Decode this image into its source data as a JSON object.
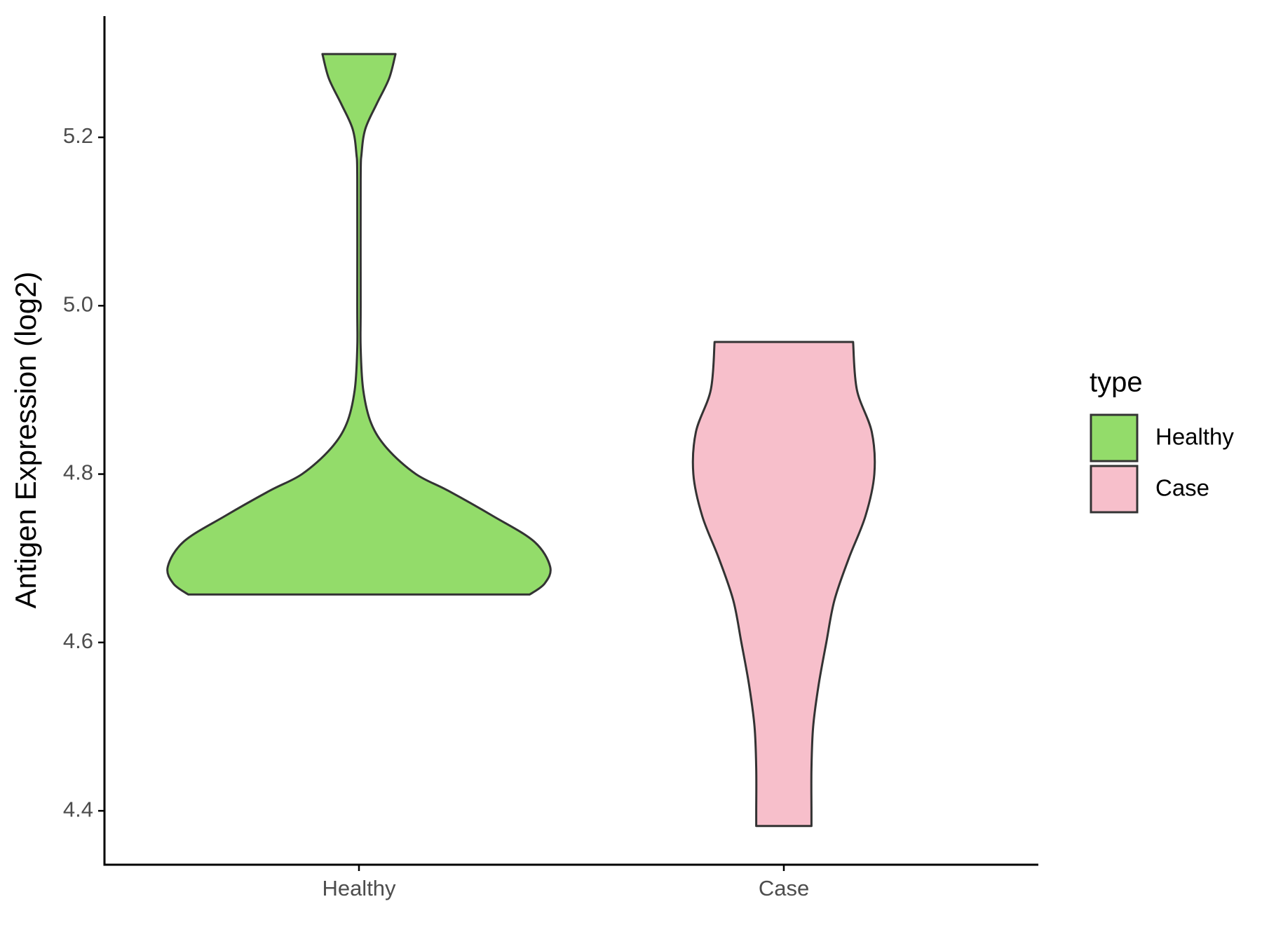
{
  "chart_data": {
    "type": "violin",
    "y_label": "Antigen Expression (log2)",
    "categories": [
      "Healthy",
      "Case"
    ],
    "legend_title": "type",
    "legend": "right",
    "ylim": [
      4.336,
      5.344
    ],
    "yticks": [
      4.4,
      4.6,
      4.8,
      {
        "value": 5,
        "label": "5.0"
      },
      5.2
    ],
    "series": [
      {
        "name": "Healthy",
        "color": "#93dc6a",
        "y": [
          4.657,
          4.67,
          4.69,
          4.72,
          4.75,
          4.78,
          4.8,
          4.83,
          4.86,
          4.9,
          4.95,
          5.0,
          5.15,
          5.18,
          5.21,
          5.24,
          5.27,
          5.299
        ],
        "half_width": [
          0.402,
          0.437,
          0.45,
          0.412,
          0.316,
          0.211,
          0.134,
          0.067,
          0.029,
          0.01,
          0.004,
          0.004,
          0.004,
          0.006,
          0.015,
          0.042,
          0.071,
          0.086
        ]
      },
      {
        "name": "Case",
        "color": "#f7bfcb",
        "y": [
          4.382,
          4.4,
          4.45,
          4.5,
          4.55,
          4.6,
          4.65,
          4.7,
          4.75,
          4.8,
          4.85,
          4.9,
          4.957
        ],
        "half_width": [
          0.065,
          0.065,
          0.065,
          0.069,
          0.082,
          0.1,
          0.119,
          0.153,
          0.192,
          0.213,
          0.207,
          0.172,
          0.163
        ]
      }
    ]
  }
}
